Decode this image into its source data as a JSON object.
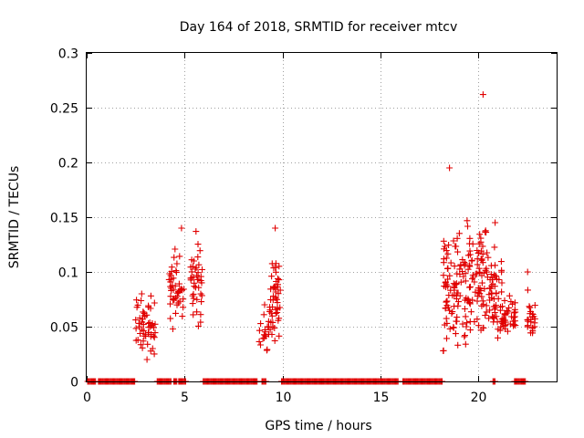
{
  "chart_data": {
    "type": "scatter",
    "title": "Day 164 of 2018, SRMTID for receiver mtcv",
    "xlabel": "GPS time / hours",
    "ylabel": "SRMTID / TECUs",
    "xlim": [
      0,
      24
    ],
    "ylim": [
      0,
      0.3
    ],
    "xticks": [
      "0",
      "5",
      "10",
      "15",
      "20"
    ],
    "xtick_values": [
      0,
      5,
      10,
      15,
      20
    ],
    "yticks": [
      "0",
      "0.05",
      "0.1",
      "0.15",
      "0.2",
      "0.25",
      "0.3"
    ],
    "ytick_values": [
      0,
      0.05,
      0.1,
      0.15,
      0.2,
      0.25,
      0.3
    ],
    "grid": true,
    "marker": "+",
    "color": "#e00000",
    "clusters": [
      {
        "x_range": [
          2.5,
          3.5
        ],
        "y_center": 0.05,
        "y_spread": 0.022,
        "count": 55,
        "y_min": 0.02,
        "y_max": 0.08
      },
      {
        "x_range": [
          4.2,
          5.0
        ],
        "y_center": 0.085,
        "y_spread": 0.025,
        "count": 45,
        "y_min": 0.035,
        "y_max": 0.14
      },
      {
        "x_range": [
          5.3,
          5.9
        ],
        "y_center": 0.09,
        "y_spread": 0.025,
        "count": 40,
        "y_min": 0.05,
        "y_max": 0.137
      },
      {
        "x_range": [
          8.8,
          9.3
        ],
        "y_center": 0.045,
        "y_spread": 0.015,
        "count": 18,
        "y_min": 0.025,
        "y_max": 0.07
      },
      {
        "x_range": [
          9.3,
          9.9
        ],
        "y_center": 0.075,
        "y_spread": 0.025,
        "count": 50,
        "y_min": 0.028,
        "y_max": 0.14
      },
      {
        "x_range": [
          18.2,
          19.0
        ],
        "y_center": 0.085,
        "y_spread": 0.035,
        "count": 70,
        "y_min": 0.025,
        "y_max": 0.195
      },
      {
        "x_range": [
          19.0,
          20.5
        ],
        "y_center": 0.095,
        "y_spread": 0.04,
        "count": 110,
        "y_min": 0.03,
        "y_max": 0.262
      },
      {
        "x_range": [
          20.5,
          21.2
        ],
        "y_center": 0.08,
        "y_spread": 0.025,
        "count": 50,
        "y_min": 0.035,
        "y_max": 0.145
      },
      {
        "x_range": [
          21.2,
          21.9
        ],
        "y_center": 0.06,
        "y_spread": 0.012,
        "count": 40,
        "y_min": 0.035,
        "y_max": 0.09
      },
      {
        "x_range": [
          22.5,
          22.9
        ],
        "y_center": 0.058,
        "y_spread": 0.015,
        "count": 25,
        "y_min": 0.035,
        "y_max": 0.1
      }
    ],
    "zero_ranges": [
      [
        0.05,
        0.45
      ],
      [
        0.6,
        2.45
      ],
      [
        3.6,
        4.3
      ],
      [
        4.45,
        4.6
      ],
      [
        4.7,
        5.05
      ],
      [
        5.95,
        8.75
      ],
      [
        8.95,
        9.2
      ],
      [
        9.95,
        15.95
      ],
      [
        16.15,
        18.2
      ],
      [
        20.75,
        20.85
      ],
      [
        21.85,
        22.45
      ]
    ]
  }
}
